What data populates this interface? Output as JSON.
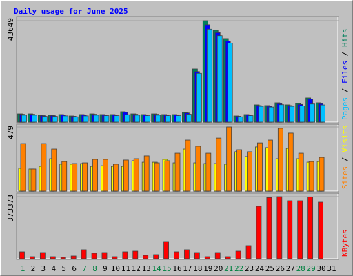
{
  "title": "Daily usage for June 2025",
  "legend_separator": " / ",
  "chart_data": [
    {
      "type": "bar",
      "series": [
        {
          "name": "Hits",
          "color": "#00805c",
          "values": [
            3560,
            3560,
            2970,
            2970,
            3270,
            2670,
            3270,
            3560,
            3270,
            3270,
            4460,
            3560,
            3270,
            3560,
            3270,
            3270,
            4160,
            22870,
            43649,
            39500,
            35940,
            2670,
            3270,
            7430,
            7130,
            8320,
            7430,
            8020,
            10400,
            8320,
            0
          ]
        },
        {
          "name": "Files",
          "color": "#0000ff",
          "values": [
            3380,
            3380,
            2820,
            2820,
            3100,
            2530,
            3100,
            3380,
            3100,
            3100,
            4230,
            3380,
            3100,
            3380,
            3100,
            3100,
            3950,
            21720,
            41900,
            38500,
            34900,
            2530,
            3100,
            7130,
            6830,
            7920,
            7130,
            7620,
            9900,
            7920,
            0
          ]
        },
        {
          "name": "Pages",
          "color": "#00c0ff",
          "values": [
            3000,
            3000,
            2500,
            2500,
            2700,
            2300,
            2700,
            3000,
            2800,
            2800,
            3200,
            3000,
            2800,
            3000,
            2800,
            2800,
            3400,
            21000,
            40000,
            37200,
            34000,
            2300,
            2800,
            6800,
            6500,
            7500,
            6800,
            7000,
            7800,
            7400,
            0
          ]
        }
      ],
      "ylim": [
        0,
        43649
      ],
      "yticks": [
        43649
      ]
    },
    {
      "type": "bar",
      "series": [
        {
          "name": "Visits",
          "color": "#ffff00",
          "values": [
            170,
            165,
            185,
            242,
            201,
            201,
            206,
            185,
            190,
            185,
            185,
            227,
            216,
            216,
            237,
            211,
            314,
            211,
            206,
            206,
            201,
            294,
            258,
            330,
            325,
            242,
            319,
            242,
            216,
            221,
            0
          ]
        },
        {
          "name": "Sites",
          "color": "#ff8000",
          "values": [
            355,
            165,
            355,
            314,
            221,
            206,
            211,
            237,
            237,
            201,
            232,
            242,
            263,
            211,
            227,
            283,
            381,
            335,
            283,
            396,
            479,
            309,
            294,
            360,
            381,
            469,
            433,
            283,
            221,
            252,
            0
          ]
        }
      ],
      "ylim": [
        0,
        479
      ],
      "yticks": [
        479
      ]
    },
    {
      "type": "bar",
      "categories": [
        "1",
        "2",
        "3",
        "4",
        "5",
        "6",
        "7",
        "8",
        "9",
        "10",
        "11",
        "12",
        "13",
        "14",
        "15",
        "16",
        "17",
        "18",
        "19",
        "20",
        "21",
        "22",
        "23",
        "24",
        "25",
        "26",
        "27",
        "28",
        "29",
        "30",
        "31"
      ],
      "category_colors": [
        "#008040",
        "#000000",
        "#000000",
        "#000000",
        "#000000",
        "#000000",
        "#008040",
        "#008040",
        "#000000",
        "#000000",
        "#000000",
        "#000000",
        "#000000",
        "#008040",
        "#008040",
        "#000000",
        "#000000",
        "#000000",
        "#000000",
        "#000000",
        "#008040",
        "#008040",
        "#000000",
        "#000000",
        "#000000",
        "#000000",
        "#000000",
        "#008040",
        "#008040",
        "#000000",
        "#000000"
      ],
      "series": [
        {
          "name": "KBytes",
          "color": "#ff0000",
          "values": [
            41500,
            12400,
            37300,
            12400,
            8300,
            16600,
            54000,
            33200,
            37300,
            12400,
            41500,
            45600,
            20700,
            24900,
            103700,
            41500,
            54000,
            37300,
            12400,
            37300,
            12400,
            45600,
            78800,
            315300,
            368000,
            373373,
            348500,
            348500,
            371000,
            340200,
            0
          ]
        }
      ],
      "ylim": [
        0,
        373373
      ],
      "yticks": [
        373373
      ]
    }
  ]
}
